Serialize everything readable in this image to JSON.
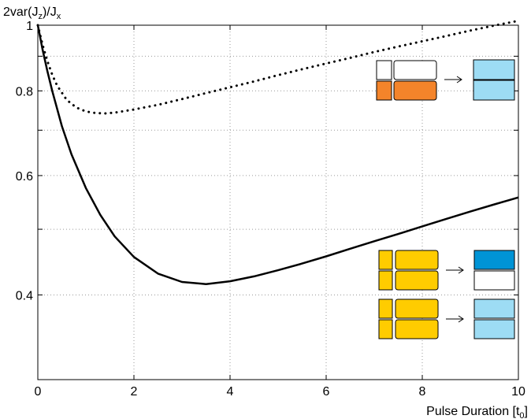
{
  "chart_data": {
    "type": "line",
    "ylabel": {
      "text": "2var(J",
      "sub1": "z",
      "mid": ")/J",
      "sub2": "x"
    },
    "xlabel": {
      "text": "Pulse Duration [t",
      "sub": "0",
      "end": "]"
    },
    "xlim": [
      0,
      10
    ],
    "ylim": [
      0.3,
      1.0
    ],
    "y_scale": "log",
    "grid": true,
    "x_ticks": [
      0,
      2,
      4,
      6,
      8,
      10
    ],
    "y_ticks": [
      {
        "value": 1.0,
        "label": "1"
      },
      {
        "value": 0.8,
        "label": "0.8"
      },
      {
        "value": 0.6,
        "label": "0.6"
      },
      {
        "value": 0.4,
        "label": "0.4"
      }
    ],
    "y_grid_values": [
      1.0,
      0.9,
      0.8,
      0.7,
      0.6,
      0.5,
      0.4,
      0.3
    ],
    "series": [
      {
        "style": "dotted",
        "color": "#000000",
        "x": [
          0,
          0.1,
          0.2,
          0.3,
          0.4,
          0.6,
          0.8,
          1.0,
          1.2,
          1.4,
          1.6,
          1.8,
          2.0,
          2.5,
          3,
          3.5,
          4,
          4.5,
          5,
          5.5,
          6,
          6.5,
          7,
          7.5,
          8,
          8.5,
          9,
          9.5,
          10
        ],
        "y": [
          1.0,
          0.935,
          0.885,
          0.845,
          0.815,
          0.776,
          0.756,
          0.746,
          0.742,
          0.741,
          0.743,
          0.747,
          0.751,
          0.763,
          0.778,
          0.794,
          0.81,
          0.826,
          0.844,
          0.861,
          0.878,
          0.895,
          0.913,
          0.93,
          0.947,
          0.964,
          0.982,
          0.999,
          1.015
        ]
      },
      {
        "style": "solid",
        "color": "#000000",
        "x": [
          0,
          0.1,
          0.2,
          0.3,
          0.5,
          0.7,
          1.0,
          1.3,
          1.6,
          2.0,
          2.5,
          3.0,
          3.5,
          4.0,
          4.5,
          5.0,
          5.5,
          6.0,
          6.5,
          7.0,
          7.5,
          8.0,
          8.5,
          9.0,
          9.5,
          10.0
        ],
        "y": [
          1.0,
          0.92,
          0.855,
          0.8,
          0.71,
          0.645,
          0.575,
          0.525,
          0.488,
          0.455,
          0.43,
          0.418,
          0.415,
          0.419,
          0.426,
          0.435,
          0.445,
          0.456,
          0.468,
          0.48,
          0.492,
          0.505,
          0.518,
          0.531,
          0.544,
          0.557
        ]
      }
    ]
  },
  "insets": {
    "top": {
      "fill_color": "#f4842a",
      "result_color": "#9ddcf4",
      "arrow": "→"
    },
    "bottom_a": {
      "fill_color": "#ffcc00",
      "result_top_color": "#0094d6",
      "result_bottom_color": "#ffffff",
      "arrow": "→"
    },
    "bottom_b": {
      "fill_color": "#ffcc00",
      "result_color": "#9ddcf4",
      "arrow": "→"
    }
  }
}
